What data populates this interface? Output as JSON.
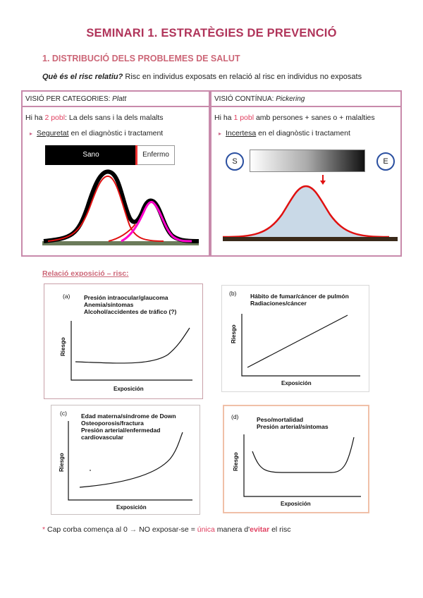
{
  "title": "SEMINARI 1. ESTRATÈGIES DE PREVENCIÓ",
  "section1": "1. DISTRIBUCIÓ DELS PROBLEMES DE SALUT",
  "definition": {
    "question": "Què és el risc relatiu?",
    "answer": " Risc en individus exposats en relació al risc en individus no exposats"
  },
  "left_box": {
    "head_label": "VISIÓ PER CATEGORIES:",
    "head_author": " Platt",
    "line_pre": "Hi ha ",
    "line_pink": "2 pobl",
    "line_post": ": La dels sans i la dels malalts",
    "bullet_u": "Seguretat",
    "bullet_rest": " en el diagnòstic i tractament",
    "bar_left": "Sano",
    "bar_right": "Enfermo"
  },
  "right_box": {
    "head_label": "VISIÓ CONTÍNUA:",
    "head_author": " Pickering",
    "line_pre": "Hi ha ",
    "line_pink": "1 pobl",
    "line_post": " amb persones + sanes o + malalties",
    "bullet_u": "Incertesa",
    "bullet_rest": " en el diagnòstic i tractament",
    "circle_left": "S",
    "circle_right": "E"
  },
  "relation_title": "Relació exposició – risc:",
  "graphs": [
    {
      "tag": "(a)",
      "labels": [
        "Presión intraocular/glaucoma",
        "Anemia/síntomas",
        "Alcohol/accidentes de tráfico (?)"
      ],
      "xlabel": "Exposición",
      "ylabel": "Riesgo"
    },
    {
      "tag": "(b)",
      "labels": [
        "Hábito de fumar/cáncer de pulmón",
        "Radiaciones/cáncer"
      ],
      "xlabel": "Exposición",
      "ylabel": "Riesgo"
    },
    {
      "tag": "(c)",
      "labels": [
        "Edad materna/síndrome de Down",
        "Osteoporosis/fractura",
        "Presión arterial/enfermedad",
        "cardiovascular"
      ],
      "xlabel": "Exposición",
      "ylabel": "Riesgo"
    },
    {
      "tag": "(d)",
      "labels": [
        "Peso/mortalidad",
        "Presión arterial/síntomas"
      ],
      "xlabel": "Exposición",
      "ylabel": "Riesgo"
    }
  ],
  "footer": {
    "star": "*",
    "text1": " Cap corba comença al 0 ",
    "arrow": "→",
    "text2": " NO exposar-se = ",
    "pink1": "única",
    "text3": " manera d'",
    "pink2": "evitar",
    "text4": " el risc"
  }
}
